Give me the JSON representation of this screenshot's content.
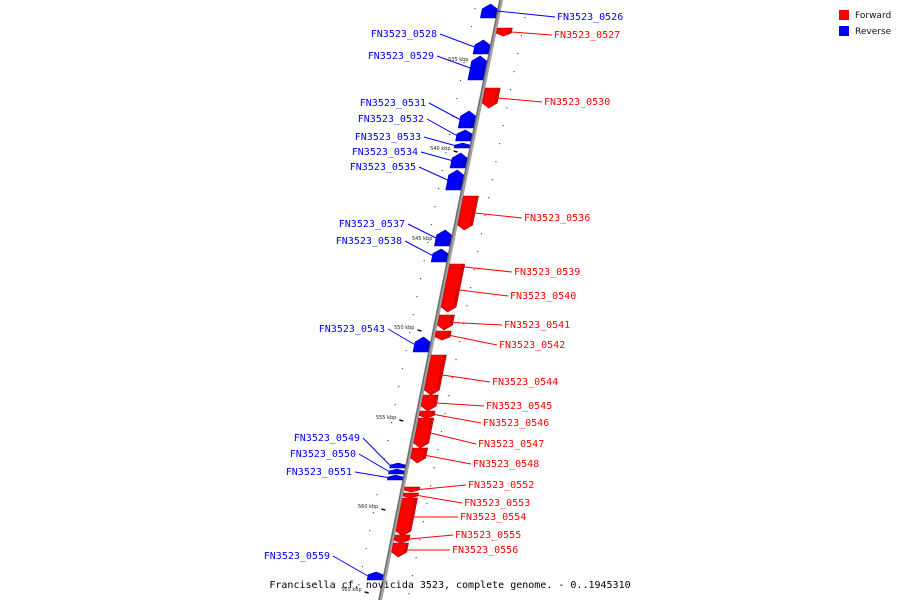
{
  "legend": [
    {
      "label": "Forward",
      "color": "#ff0000"
    },
    {
      "label": "Reverse",
      "color": "#0000ff"
    }
  ],
  "caption": "Francisella cf. novicida 3523, complete genome. - 0..1945310",
  "colors": {
    "forward": "#ff0000",
    "reverse": "#0000ff",
    "axis": "#808080"
  },
  "ticks": [
    "535 kbp",
    "540 kbp",
    "545 kbp",
    "550 kbp",
    "555 kbp",
    "560 kbp",
    "565 kbp"
  ],
  "genes": [
    {
      "name": "FN3523_0526",
      "strand": "reverse"
    },
    {
      "name": "FN3523_0527",
      "strand": "forward"
    },
    {
      "name": "FN3523_0528",
      "strand": "reverse"
    },
    {
      "name": "FN3523_0529",
      "strand": "reverse"
    },
    {
      "name": "FN3523_0530",
      "strand": "forward"
    },
    {
      "name": "FN3523_0531",
      "strand": "reverse"
    },
    {
      "name": "FN3523_0532",
      "strand": "reverse"
    },
    {
      "name": "FN3523_0533",
      "strand": "reverse"
    },
    {
      "name": "FN3523_0534",
      "strand": "reverse"
    },
    {
      "name": "FN3523_0535",
      "strand": "reverse"
    },
    {
      "name": "FN3523_0536",
      "strand": "forward"
    },
    {
      "name": "FN3523_0537",
      "strand": "reverse"
    },
    {
      "name": "FN3523_0538",
      "strand": "reverse"
    },
    {
      "name": "FN3523_0539",
      "strand": "forward"
    },
    {
      "name": "FN3523_0540",
      "strand": "forward"
    },
    {
      "name": "FN3523_0541",
      "strand": "forward"
    },
    {
      "name": "FN3523_0542",
      "strand": "forward"
    },
    {
      "name": "FN3523_0543",
      "strand": "reverse"
    },
    {
      "name": "FN3523_0544",
      "strand": "forward"
    },
    {
      "name": "FN3523_0545",
      "strand": "forward"
    },
    {
      "name": "FN3523_0546",
      "strand": "forward"
    },
    {
      "name": "FN3523_0547",
      "strand": "forward"
    },
    {
      "name": "FN3523_0548",
      "strand": "forward"
    },
    {
      "name": "FN3523_0549",
      "strand": "reverse"
    },
    {
      "name": "FN3523_0550",
      "strand": "reverse"
    },
    {
      "name": "FN3523_0551",
      "strand": "reverse"
    },
    {
      "name": "FN3523_0552",
      "strand": "forward"
    },
    {
      "name": "FN3523_0553",
      "strand": "forward"
    },
    {
      "name": "FN3523_0554",
      "strand": "forward"
    },
    {
      "name": "FN3523_0555",
      "strand": "forward"
    },
    {
      "name": "FN3523_0556",
      "strand": "forward"
    },
    {
      "name": "FN3523_0559",
      "strand": "reverse"
    }
  ]
}
